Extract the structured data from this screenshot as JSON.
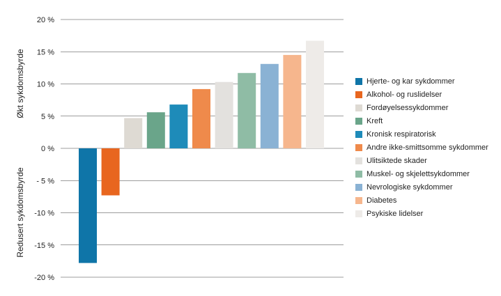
{
  "chart_data": {
    "type": "bar",
    "categories": [
      "Hjerte- og kar sykdommer",
      "Alkohol- og ruslidelser",
      "Fordøyelsessykdommer",
      "Kreft",
      "Kronisk respiratorisk",
      "Andre ikke-smittsomme sykdommer",
      "Ulitsiktede skader",
      "Muskel- og skjelettsykdommer",
      "Nevrologiske sykdommer",
      "Diabetes",
      "Psykiske lidelser"
    ],
    "values": [
      -17.8,
      -7.3,
      4.7,
      5.6,
      6.8,
      9.2,
      10.3,
      11.7,
      13.1,
      14.5,
      16.7
    ],
    "colors": [
      "#0f75a8",
      "#e8661f",
      "#dedad3",
      "#6aa58a",
      "#1e8bb9",
      "#ef8a4b",
      "#e3e1de",
      "#8fbca5",
      "#8ab2d4",
      "#f6b68d",
      "#eeebe8"
    ],
    "ylim": [
      -20,
      20
    ],
    "yticks": [
      {
        "value": 20,
        "label": "20 %"
      },
      {
        "value": 15,
        "label": "15 %"
      },
      {
        "value": 10,
        "label": "10 %"
      },
      {
        "value": 5,
        "label": "5 %"
      },
      {
        "value": 0,
        "label": "0 %"
      },
      {
        "value": -5,
        "label": "- 5 %"
      },
      {
        "value": -10,
        "label": "-10 %"
      },
      {
        "value": -15,
        "label": "-15 %"
      },
      {
        "value": -20,
        "label": "-20 %"
      }
    ],
    "ylabel_positive": "Økt sykdomsbyrde",
    "ylabel_negative": "Redusert sykdomsbyrde",
    "grid": true,
    "legend_position": "right"
  }
}
